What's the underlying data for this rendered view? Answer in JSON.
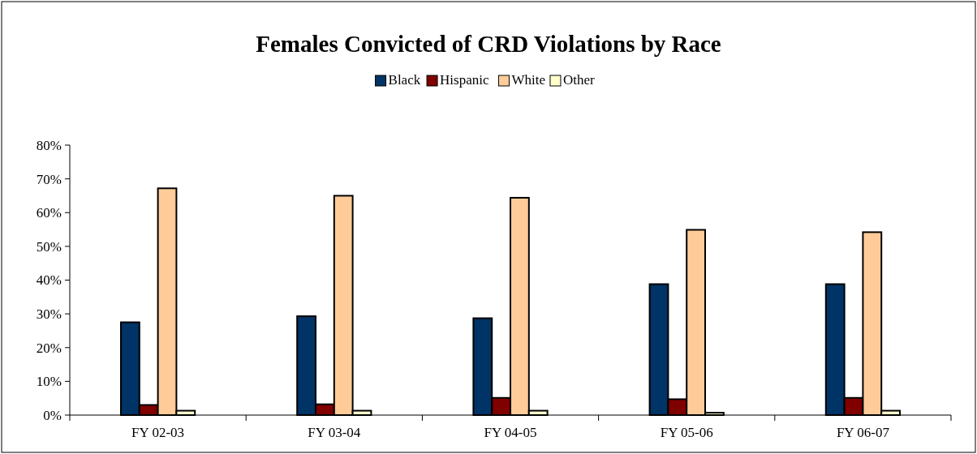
{
  "chart_data": {
    "type": "bar",
    "title": "Females Convicted of CRD Violations by Race",
    "categories": [
      "FY 02-03",
      "FY 03-04",
      "FY 04-05",
      "FY 05-06",
      "FY 06-07"
    ],
    "series": [
      {
        "name": "Black",
        "color": "#003366",
        "values": [
          27.5,
          29.3,
          28.7,
          38.8,
          38.8
        ]
      },
      {
        "name": "Hispanic",
        "color": "#800000",
        "values": [
          3.0,
          3.2,
          5.1,
          4.7,
          5.1
        ]
      },
      {
        "name": "White",
        "color": "#ffcc99",
        "values": [
          67.2,
          65.0,
          64.4,
          54.9,
          54.2
        ]
      },
      {
        "name": "Other",
        "color": "#ffffcc",
        "values": [
          1.3,
          1.3,
          1.3,
          0.7,
          1.3
        ]
      }
    ],
    "ylim": [
      0,
      80
    ],
    "yticks": [
      {
        "value": 0,
        "label": "0%"
      },
      {
        "value": 10,
        "label": "10%"
      },
      {
        "value": 20,
        "label": "20%"
      },
      {
        "value": 30,
        "label": "30%"
      },
      {
        "value": 40,
        "label": "40%"
      },
      {
        "value": 50,
        "label": "50%"
      },
      {
        "value": 60,
        "label": "60%"
      },
      {
        "value": 70,
        "label": "70%"
      },
      {
        "value": 80,
        "label": "80%"
      }
    ],
    "legend": "top"
  }
}
